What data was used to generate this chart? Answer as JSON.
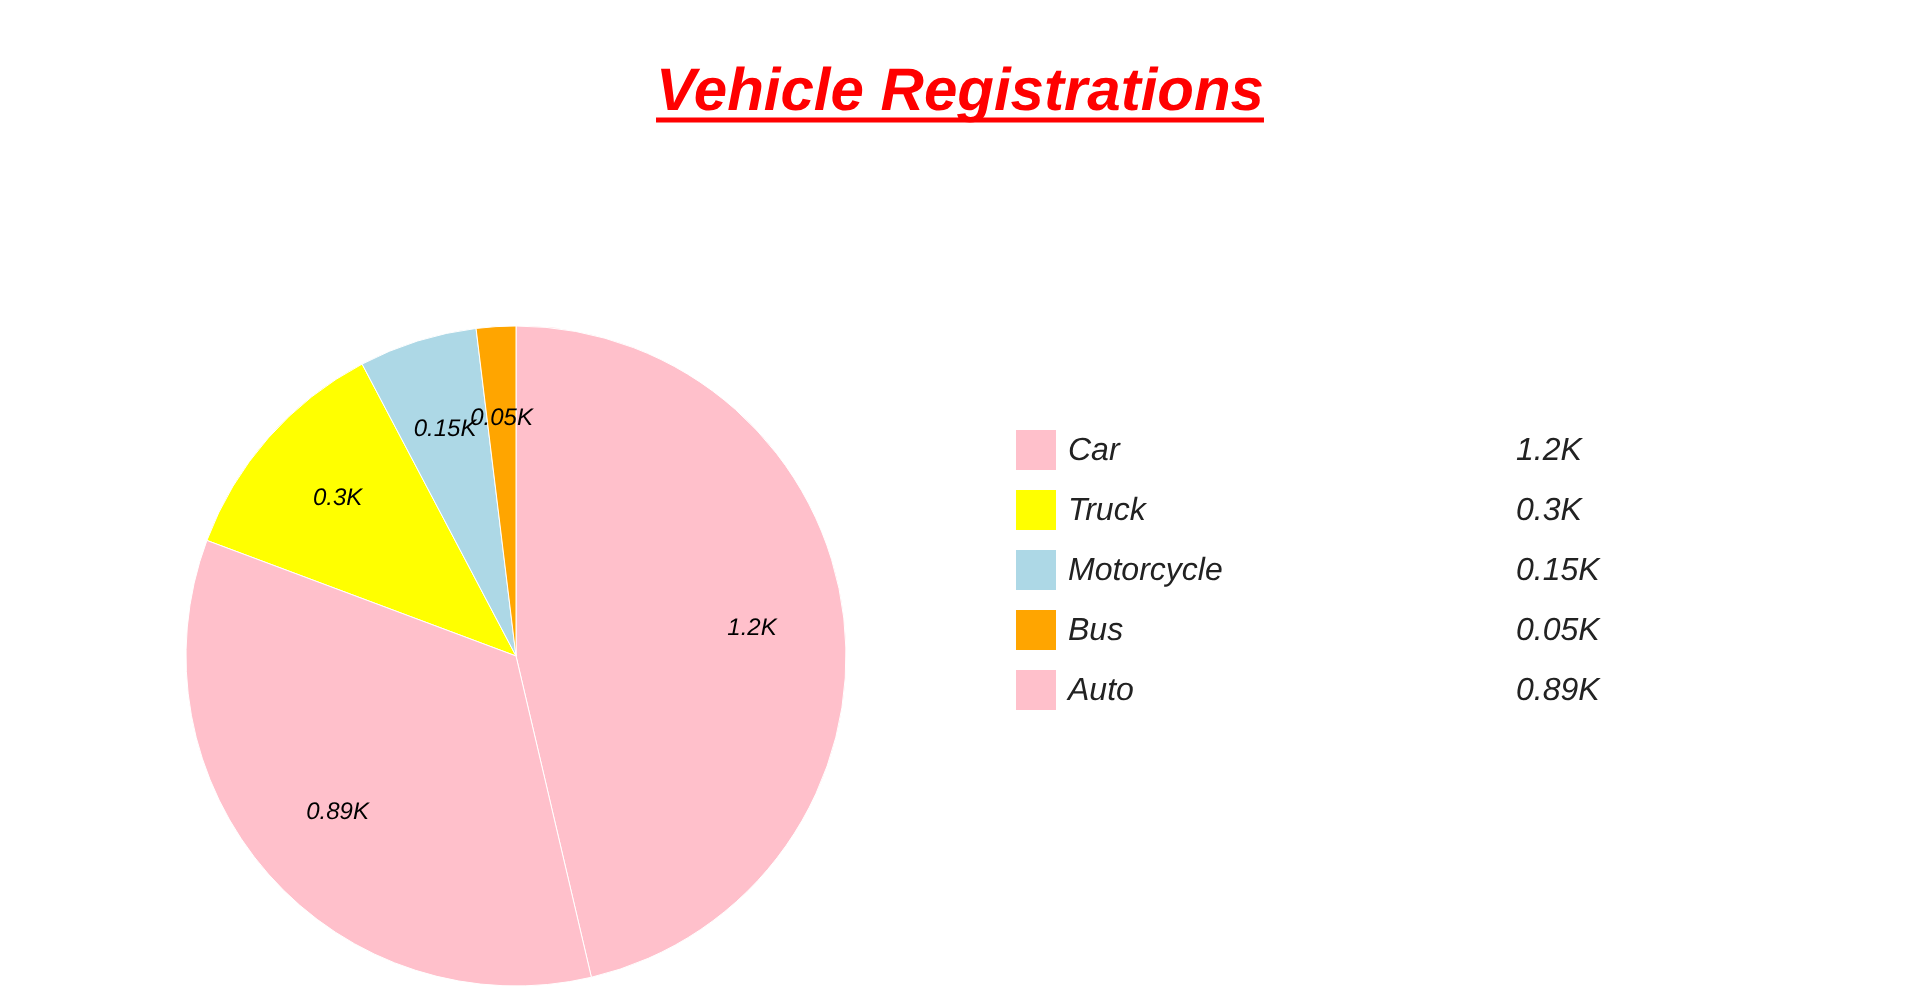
{
  "chart_data": {
    "type": "pie",
    "title": "Vehicle Registrations",
    "categories": [
      "Car",
      "Truck",
      "Motorcycle",
      "Bus",
      "Auto"
    ],
    "values": [
      1200,
      300,
      150,
      50,
      890
    ],
    "value_labels": [
      "1.2K",
      "0.3K",
      "0.15K",
      "0.05K",
      "0.89K"
    ],
    "colors": [
      "#ffc0cb",
      "#ffff00",
      "#add8e6",
      "#ffa500",
      "#ffc0cb"
    ],
    "legend": "right"
  }
}
